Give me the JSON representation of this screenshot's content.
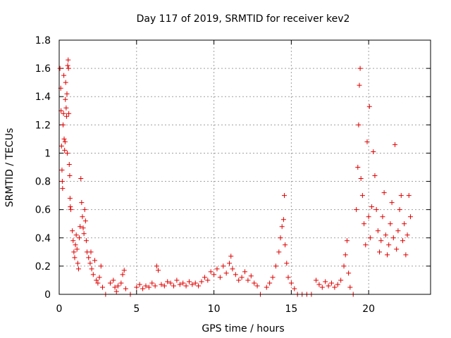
{
  "chart_data": {
    "type": "scatter",
    "title": "Day 117 of 2019, SRMTID for receiver kev2",
    "xlabel": "GPS time / hours",
    "ylabel": "SRMTID / TECUs",
    "xlim": [
      0,
      24
    ],
    "ylim": [
      0,
      1.8
    ],
    "xticks": [
      0,
      5,
      10,
      15,
      20
    ],
    "yticks": [
      0,
      0.2,
      0.4,
      0.6,
      0.8,
      1,
      1.2,
      1.4,
      1.6,
      1.8
    ],
    "ytick_labels": [
      "0",
      "0.2",
      "0.4",
      "0.6",
      "0.8",
      "1",
      "1.2",
      "1.4",
      "1.6",
      "1.8"
    ],
    "grid": true,
    "marker": "+",
    "color": "#e00000",
    "series": [
      {
        "name": "kev2",
        "points": [
          [
            0.05,
            1.6
          ],
          [
            0.1,
            1.46
          ],
          [
            0.12,
            1.3
          ],
          [
            0.15,
            1.05
          ],
          [
            0.18,
            0.88
          ],
          [
            0.2,
            0.8
          ],
          [
            0.22,
            0.75
          ],
          [
            0.25,
            1.2
          ],
          [
            0.28,
            1.28
          ],
          [
            0.3,
            1.55
          ],
          [
            0.32,
            1.1
          ],
          [
            0.35,
            1.02
          ],
          [
            0.38,
            1.08
          ],
          [
            0.4,
            1.38
          ],
          [
            0.42,
            1.5
          ],
          [
            0.45,
            1.32
          ],
          [
            0.48,
            1.26
          ],
          [
            0.5,
            1.42
          ],
          [
            0.52,
            1.0
          ],
          [
            0.55,
            1.62
          ],
          [
            0.58,
            1.66
          ],
          [
            0.6,
            1.6
          ],
          [
            0.62,
            1.28
          ],
          [
            0.65,
            0.92
          ],
          [
            0.68,
            0.84
          ],
          [
            0.7,
            0.68
          ],
          [
            0.72,
            0.62
          ],
          [
            0.75,
            0.6
          ],
          [
            0.85,
            0.45
          ],
          [
            0.9,
            0.38
          ],
          [
            0.95,
            0.3
          ],
          [
            1.0,
            0.26
          ],
          [
            1.05,
            0.35
          ],
          [
            1.1,
            0.42
          ],
          [
            1.15,
            0.32
          ],
          [
            1.2,
            0.22
          ],
          [
            1.25,
            0.18
          ],
          [
            1.3,
            0.4
          ],
          [
            1.35,
            0.48
          ],
          [
            1.4,
            0.82
          ],
          [
            1.45,
            0.65
          ],
          [
            1.5,
            0.55
          ],
          [
            1.55,
            0.47
          ],
          [
            1.6,
            0.43
          ],
          [
            1.65,
            0.6
          ],
          [
            1.7,
            0.52
          ],
          [
            1.75,
            0.38
          ],
          [
            1.8,
            0.3
          ],
          [
            1.9,
            0.26
          ],
          [
            2.0,
            0.22
          ],
          [
            2.05,
            0.3
          ],
          [
            2.1,
            0.18
          ],
          [
            2.2,
            0.14
          ],
          [
            2.3,
            0.24
          ],
          [
            2.4,
            0.1
          ],
          [
            2.5,
            0.08
          ],
          [
            2.6,
            0.12
          ],
          [
            2.7,
            0.2
          ],
          [
            2.8,
            0.05
          ],
          [
            3.0,
            0.0
          ],
          [
            3.3,
            0.08
          ],
          [
            3.5,
            0.1
          ],
          [
            3.6,
            0.05
          ],
          [
            3.7,
            0.02
          ],
          [
            3.8,
            0.06
          ],
          [
            4.0,
            0.08
          ],
          [
            4.1,
            0.14
          ],
          [
            4.2,
            0.17
          ],
          [
            4.3,
            0.04
          ],
          [
            4.6,
            0.0
          ],
          [
            5.0,
            0.05
          ],
          [
            5.2,
            0.07
          ],
          [
            5.4,
            0.04
          ],
          [
            5.6,
            0.06
          ],
          [
            5.8,
            0.05
          ],
          [
            6.0,
            0.08
          ],
          [
            6.2,
            0.06
          ],
          [
            6.3,
            0.2
          ],
          [
            6.4,
            0.17
          ],
          [
            6.6,
            0.07
          ],
          [
            6.8,
            0.06
          ],
          [
            7.0,
            0.09
          ],
          [
            7.2,
            0.08
          ],
          [
            7.4,
            0.06
          ],
          [
            7.6,
            0.1
          ],
          [
            7.8,
            0.07
          ],
          [
            8.0,
            0.08
          ],
          [
            8.2,
            0.06
          ],
          [
            8.4,
            0.09
          ],
          [
            8.6,
            0.07
          ],
          [
            8.8,
            0.08
          ],
          [
            9.0,
            0.06
          ],
          [
            9.2,
            0.09
          ],
          [
            9.4,
            0.12
          ],
          [
            9.6,
            0.1
          ],
          [
            9.8,
            0.16
          ],
          [
            10.0,
            0.14
          ],
          [
            10.2,
            0.18
          ],
          [
            10.4,
            0.12
          ],
          [
            10.6,
            0.2
          ],
          [
            10.8,
            0.15
          ],
          [
            11.0,
            0.22
          ],
          [
            11.1,
            0.27
          ],
          [
            11.2,
            0.18
          ],
          [
            11.4,
            0.14
          ],
          [
            11.6,
            0.1
          ],
          [
            11.8,
            0.12
          ],
          [
            12.0,
            0.16
          ],
          [
            12.2,
            0.1
          ],
          [
            12.4,
            0.13
          ],
          [
            12.6,
            0.08
          ],
          [
            12.8,
            0.06
          ],
          [
            13.0,
            0.0
          ],
          [
            13.4,
            0.05
          ],
          [
            13.6,
            0.08
          ],
          [
            13.8,
            0.12
          ],
          [
            14.0,
            0.2
          ],
          [
            14.2,
            0.3
          ],
          [
            14.3,
            0.4
          ],
          [
            14.4,
            0.48
          ],
          [
            14.5,
            0.53
          ],
          [
            14.55,
            0.7
          ],
          [
            14.6,
            0.35
          ],
          [
            14.7,
            0.22
          ],
          [
            14.8,
            0.12
          ],
          [
            15.0,
            0.08
          ],
          [
            15.2,
            0.04
          ],
          [
            15.4,
            0.0
          ],
          [
            15.7,
            0.0
          ],
          [
            16.0,
            0.0
          ],
          [
            16.3,
            0.0
          ],
          [
            16.6,
            0.1
          ],
          [
            16.8,
            0.07
          ],
          [
            17.0,
            0.05
          ],
          [
            17.2,
            0.09
          ],
          [
            17.4,
            0.06
          ],
          [
            17.6,
            0.08
          ],
          [
            17.8,
            0.05
          ],
          [
            18.0,
            0.07
          ],
          [
            18.2,
            0.1
          ],
          [
            18.4,
            0.2
          ],
          [
            18.5,
            0.28
          ],
          [
            18.6,
            0.38
          ],
          [
            18.7,
            0.15
          ],
          [
            18.8,
            0.05
          ],
          [
            19.0,
            0.0
          ],
          [
            19.2,
            0.6
          ],
          [
            19.3,
            0.9
          ],
          [
            19.35,
            1.2
          ],
          [
            19.4,
            1.48
          ],
          [
            19.45,
            1.6
          ],
          [
            19.5,
            0.82
          ],
          [
            19.6,
            0.7
          ],
          [
            19.7,
            0.5
          ],
          [
            19.8,
            0.35
          ],
          [
            19.9,
            1.08
          ],
          [
            20.0,
            0.55
          ],
          [
            20.05,
            1.33
          ],
          [
            20.1,
            0.4
          ],
          [
            20.2,
            0.62
          ],
          [
            20.3,
            1.01
          ],
          [
            20.4,
            0.84
          ],
          [
            20.5,
            0.6
          ],
          [
            20.6,
            0.45
          ],
          [
            20.7,
            0.3
          ],
          [
            20.8,
            0.38
          ],
          [
            20.9,
            0.55
          ],
          [
            21.0,
            0.72
          ],
          [
            21.1,
            0.42
          ],
          [
            21.2,
            0.28
          ],
          [
            21.3,
            0.35
          ],
          [
            21.4,
            0.5
          ],
          [
            21.5,
            0.65
          ],
          [
            21.6,
            0.4
          ],
          [
            21.7,
            1.06
          ],
          [
            21.8,
            0.32
          ],
          [
            21.9,
            0.45
          ],
          [
            22.0,
            0.6
          ],
          [
            22.1,
            0.7
          ],
          [
            22.2,
            0.38
          ],
          [
            22.3,
            0.5
          ],
          [
            22.4,
            0.28
          ],
          [
            22.5,
            0.42
          ],
          [
            22.6,
            0.7
          ],
          [
            22.7,
            0.55
          ]
        ]
      }
    ]
  }
}
